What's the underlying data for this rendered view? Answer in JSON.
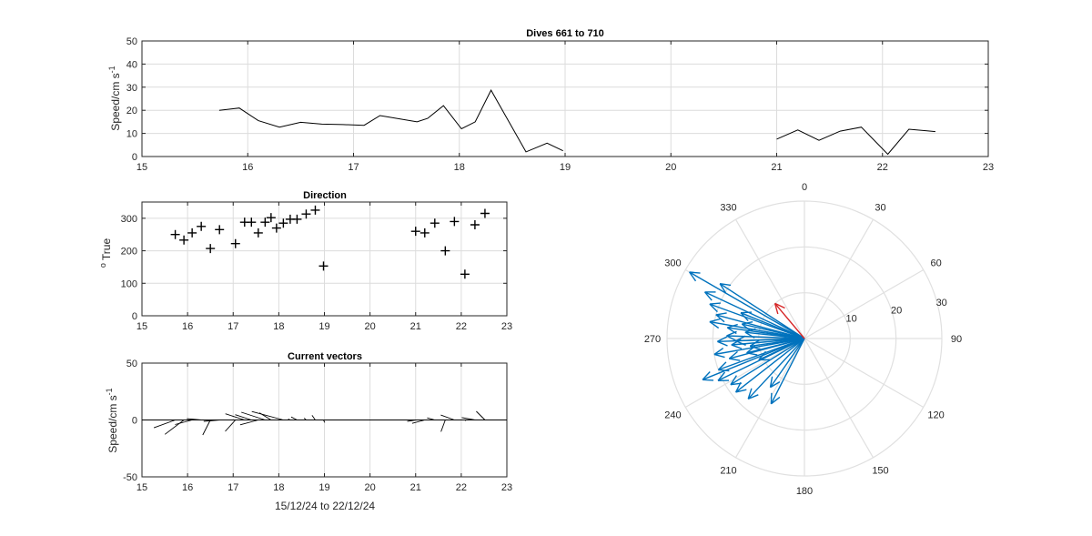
{
  "chart_data": [
    {
      "type": "line",
      "title": "Dives 661 to 710",
      "ylabel": "Speed/cm s",
      "ylabel_sup": "-1",
      "xlim": [
        15,
        23
      ],
      "ylim": [
        0,
        50
      ],
      "xticks": [
        15,
        16,
        17,
        18,
        19,
        20,
        21,
        22,
        23
      ],
      "yticks": [
        0,
        10,
        20,
        30,
        40,
        50
      ],
      "grid": true,
      "segments": [
        [
          [
            15.73,
            20
          ],
          [
            15.92,
            21
          ],
          [
            16.1,
            15.5
          ],
          [
            16.3,
            12.7
          ],
          [
            16.5,
            14.8
          ],
          [
            16.7,
            14
          ],
          [
            16.9,
            13.8
          ],
          [
            17.1,
            13.5
          ],
          [
            17.25,
            17.7
          ],
          [
            17.6,
            15
          ],
          [
            17.7,
            16.5
          ],
          [
            17.85,
            22
          ],
          [
            18.02,
            12
          ],
          [
            18.15,
            15
          ],
          [
            18.3,
            28.7
          ],
          [
            18.63,
            2
          ],
          [
            18.83,
            5.8
          ],
          [
            18.98,
            2.5
          ]
        ],
        [
          [
            21.0,
            7.5
          ],
          [
            21.2,
            11.5
          ],
          [
            21.4,
            7
          ],
          [
            21.6,
            11
          ],
          [
            21.8,
            12.7
          ],
          [
            22.05,
            1
          ],
          [
            22.25,
            11.8
          ],
          [
            22.5,
            10.8
          ]
        ]
      ]
    },
    {
      "type": "scatter",
      "title": "Direction",
      "ylabel": "True",
      "ylabel_sup": "o",
      "xlim": [
        15,
        23
      ],
      "ylim": [
        0,
        350
      ],
      "xticks": [
        15,
        16,
        17,
        18,
        19,
        20,
        21,
        22,
        23
      ],
      "yticks": [
        0,
        100,
        200,
        300
      ],
      "grid": true,
      "marker": "+",
      "points": [
        [
          15.73,
          250
        ],
        [
          15.92,
          233
        ],
        [
          16.1,
          255
        ],
        [
          16.3,
          275
        ],
        [
          16.5,
          207
        ],
        [
          16.7,
          265
        ],
        [
          17.05,
          222
        ],
        [
          17.25,
          288
        ],
        [
          17.4,
          288
        ],
        [
          17.55,
          255
        ],
        [
          17.7,
          288
        ],
        [
          17.83,
          302
        ],
        [
          17.95,
          270
        ],
        [
          18.1,
          285
        ],
        [
          18.25,
          297
        ],
        [
          18.4,
          297
        ],
        [
          18.6,
          313
        ],
        [
          18.8,
          325
        ],
        [
          18.98,
          153
        ],
        [
          21.0,
          260
        ],
        [
          21.2,
          255
        ],
        [
          21.42,
          285
        ],
        [
          21.65,
          200
        ],
        [
          21.85,
          290
        ],
        [
          22.08,
          128
        ],
        [
          22.3,
          280
        ],
        [
          22.52,
          315
        ]
      ]
    },
    {
      "type": "vector",
      "title": "Current vectors",
      "ylabel": "Speed/cm s",
      "ylabel_sup": "-1",
      "xlabel": "15/12/24 to 22/12/24",
      "xlim": [
        15,
        23
      ],
      "ylim": [
        -50,
        50
      ],
      "xticks": [
        15,
        16,
        17,
        18,
        19,
        20,
        21,
        22,
        23
      ],
      "yticks": [
        -50,
        0,
        50
      ],
      "grid": true,
      "vectors": [
        [
          15.73,
          20,
          250
        ],
        [
          15.92,
          21,
          233
        ],
        [
          16.1,
          15.5,
          255
        ],
        [
          16.3,
          12.7,
          275
        ],
        [
          16.5,
          14.8,
          207
        ],
        [
          16.7,
          14,
          265
        ],
        [
          17.05,
          13.5,
          222
        ],
        [
          17.25,
          17.7,
          288
        ],
        [
          17.4,
          15,
          288
        ],
        [
          17.55,
          16.5,
          255
        ],
        [
          17.7,
          22,
          288
        ],
        [
          17.83,
          12,
          302
        ],
        [
          17.95,
          15,
          270
        ],
        [
          18.1,
          28.7,
          285
        ],
        [
          18.25,
          2,
          297
        ],
        [
          18.4,
          5.8,
          297
        ],
        [
          18.6,
          2.5,
          313
        ],
        [
          18.8,
          5,
          325
        ],
        [
          18.98,
          2.5,
          153
        ],
        [
          21.0,
          7.5,
          260
        ],
        [
          21.2,
          11.5,
          255
        ],
        [
          21.42,
          7,
          285
        ],
        [
          21.65,
          11,
          200
        ],
        [
          21.85,
          12.7,
          290
        ],
        [
          22.08,
          1,
          128
        ],
        [
          22.3,
          11.8,
          280
        ],
        [
          22.52,
          10.8,
          315
        ]
      ],
      "zero_line": [
        15,
        23
      ]
    },
    {
      "type": "polar",
      "rlim": [
        0,
        30
      ],
      "rticks": [
        10,
        20,
        30
      ],
      "theta_zero": "top",
      "theta_direction": "clockwise",
      "angle_labels": [
        "0",
        "30",
        "60",
        "90",
        "120",
        "150",
        "180",
        "210",
        "240",
        "270",
        "300",
        "330"
      ],
      "rtick_labels": [
        "10",
        "20",
        "30"
      ],
      "vector_color": "#0072BD",
      "mean_color": "#D62728",
      "vectors": [
        [
          300,
          29
        ],
        [
          295,
          24
        ],
        [
          303,
          22
        ],
        [
          290,
          22
        ],
        [
          285,
          20
        ],
        [
          280,
          21
        ],
        [
          278,
          17
        ],
        [
          272,
          17
        ],
        [
          268,
          15
        ],
        [
          265,
          16
        ],
        [
          260,
          20
        ],
        [
          255,
          17
        ],
        [
          250,
          20
        ],
        [
          248,
          24
        ],
        [
          244,
          21
        ],
        [
          238,
          19
        ],
        [
          232,
          19
        ],
        [
          223,
          18
        ],
        [
          215,
          13
        ],
        [
          207,
          16
        ],
        [
          283,
          14
        ],
        [
          276,
          13
        ],
        [
          262,
          12
        ],
        [
          292,
          15
        ],
        [
          256,
          13
        ],
        [
          245,
          11
        ],
        [
          268,
          19
        ]
      ],
      "mean_vector": [
        320,
        10
      ]
    }
  ]
}
